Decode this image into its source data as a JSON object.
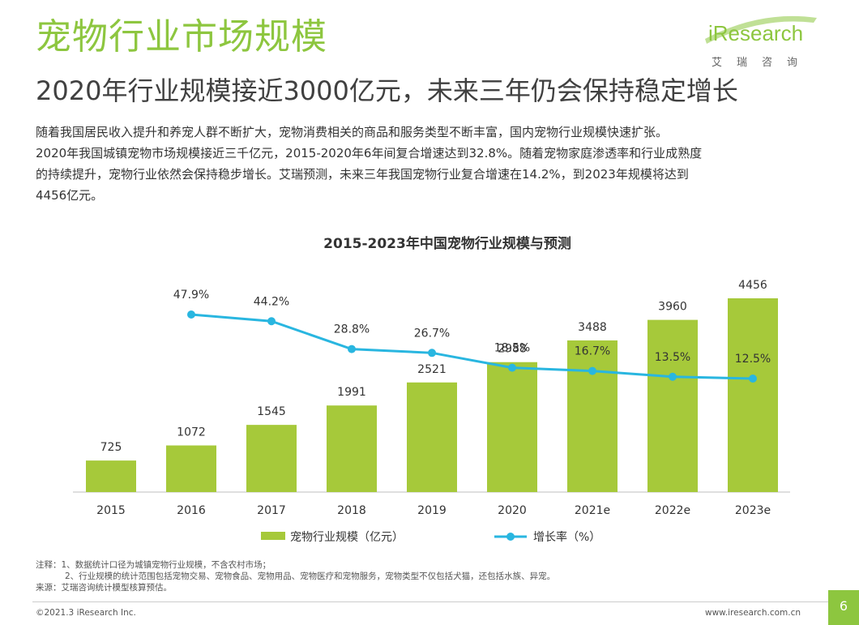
{
  "page": {
    "title": "宠物行业市场规模",
    "subtitle": "2020年行业规模接近3000亿元，未来三年仍会保持稳定增长",
    "intro": [
      "随着我国居民收入提升和养宠人群不断扩大，宠物消费相关的商品和服务类型不断丰富，国内宠物行业规模快速扩张。",
      "2020年我国城镇宠物市场规模接近三千亿元，2015-2020年6年间复合增速达到32.8%。随着宠物家庭渗透率和行业成熟度",
      "的持续提升，宠物行业依然会保持稳步增长。艾瑞预测，未来三年我国宠物行业复合增速在14.2%，到2023年规模将达到",
      "4456亿元。"
    ],
    "notes": [
      "注释：1、数据统计口径为城镇宠物行业规模，不含农村市场；",
      "2、行业规模的统计范围包括宠物交易、宠物食品、宠物用品、宠物医疗和宠物服务，宠物类型不仅包括犬猫，还包括水族、异宠。",
      "来源：艾瑞咨询统计模型核算预估。"
    ],
    "copyright": "©2021.3 iResearch Inc.",
    "website": "www.iresearch.com.cn",
    "page_number": "6"
  },
  "logo": {
    "name": "iResearch",
    "sub": "艾瑞咨询"
  },
  "colors": {
    "accent": "#8dc63f",
    "bar": "#a6c93a",
    "line": "#29b6e0"
  },
  "chart_data": {
    "type": "bar",
    "title": "2015-2023年中国宠物行业规模与预测",
    "categories": [
      "2015",
      "2016",
      "2017",
      "2018",
      "2019",
      "2020",
      "2021e",
      "2022e",
      "2023e"
    ],
    "series": [
      {
        "name": "宠物行业规模（亿元）",
        "type": "bar",
        "values": [
          725,
          1072,
          1545,
          1991,
          2521,
          2988,
          3488,
          3960,
          4456
        ]
      },
      {
        "name": "增长率（%）",
        "type": "line",
        "values": [
          null,
          47.9,
          44.2,
          28.8,
          26.7,
          18.5,
          16.7,
          13.5,
          12.5
        ]
      }
    ],
    "legend_position": "bottom",
    "grid": false
  }
}
